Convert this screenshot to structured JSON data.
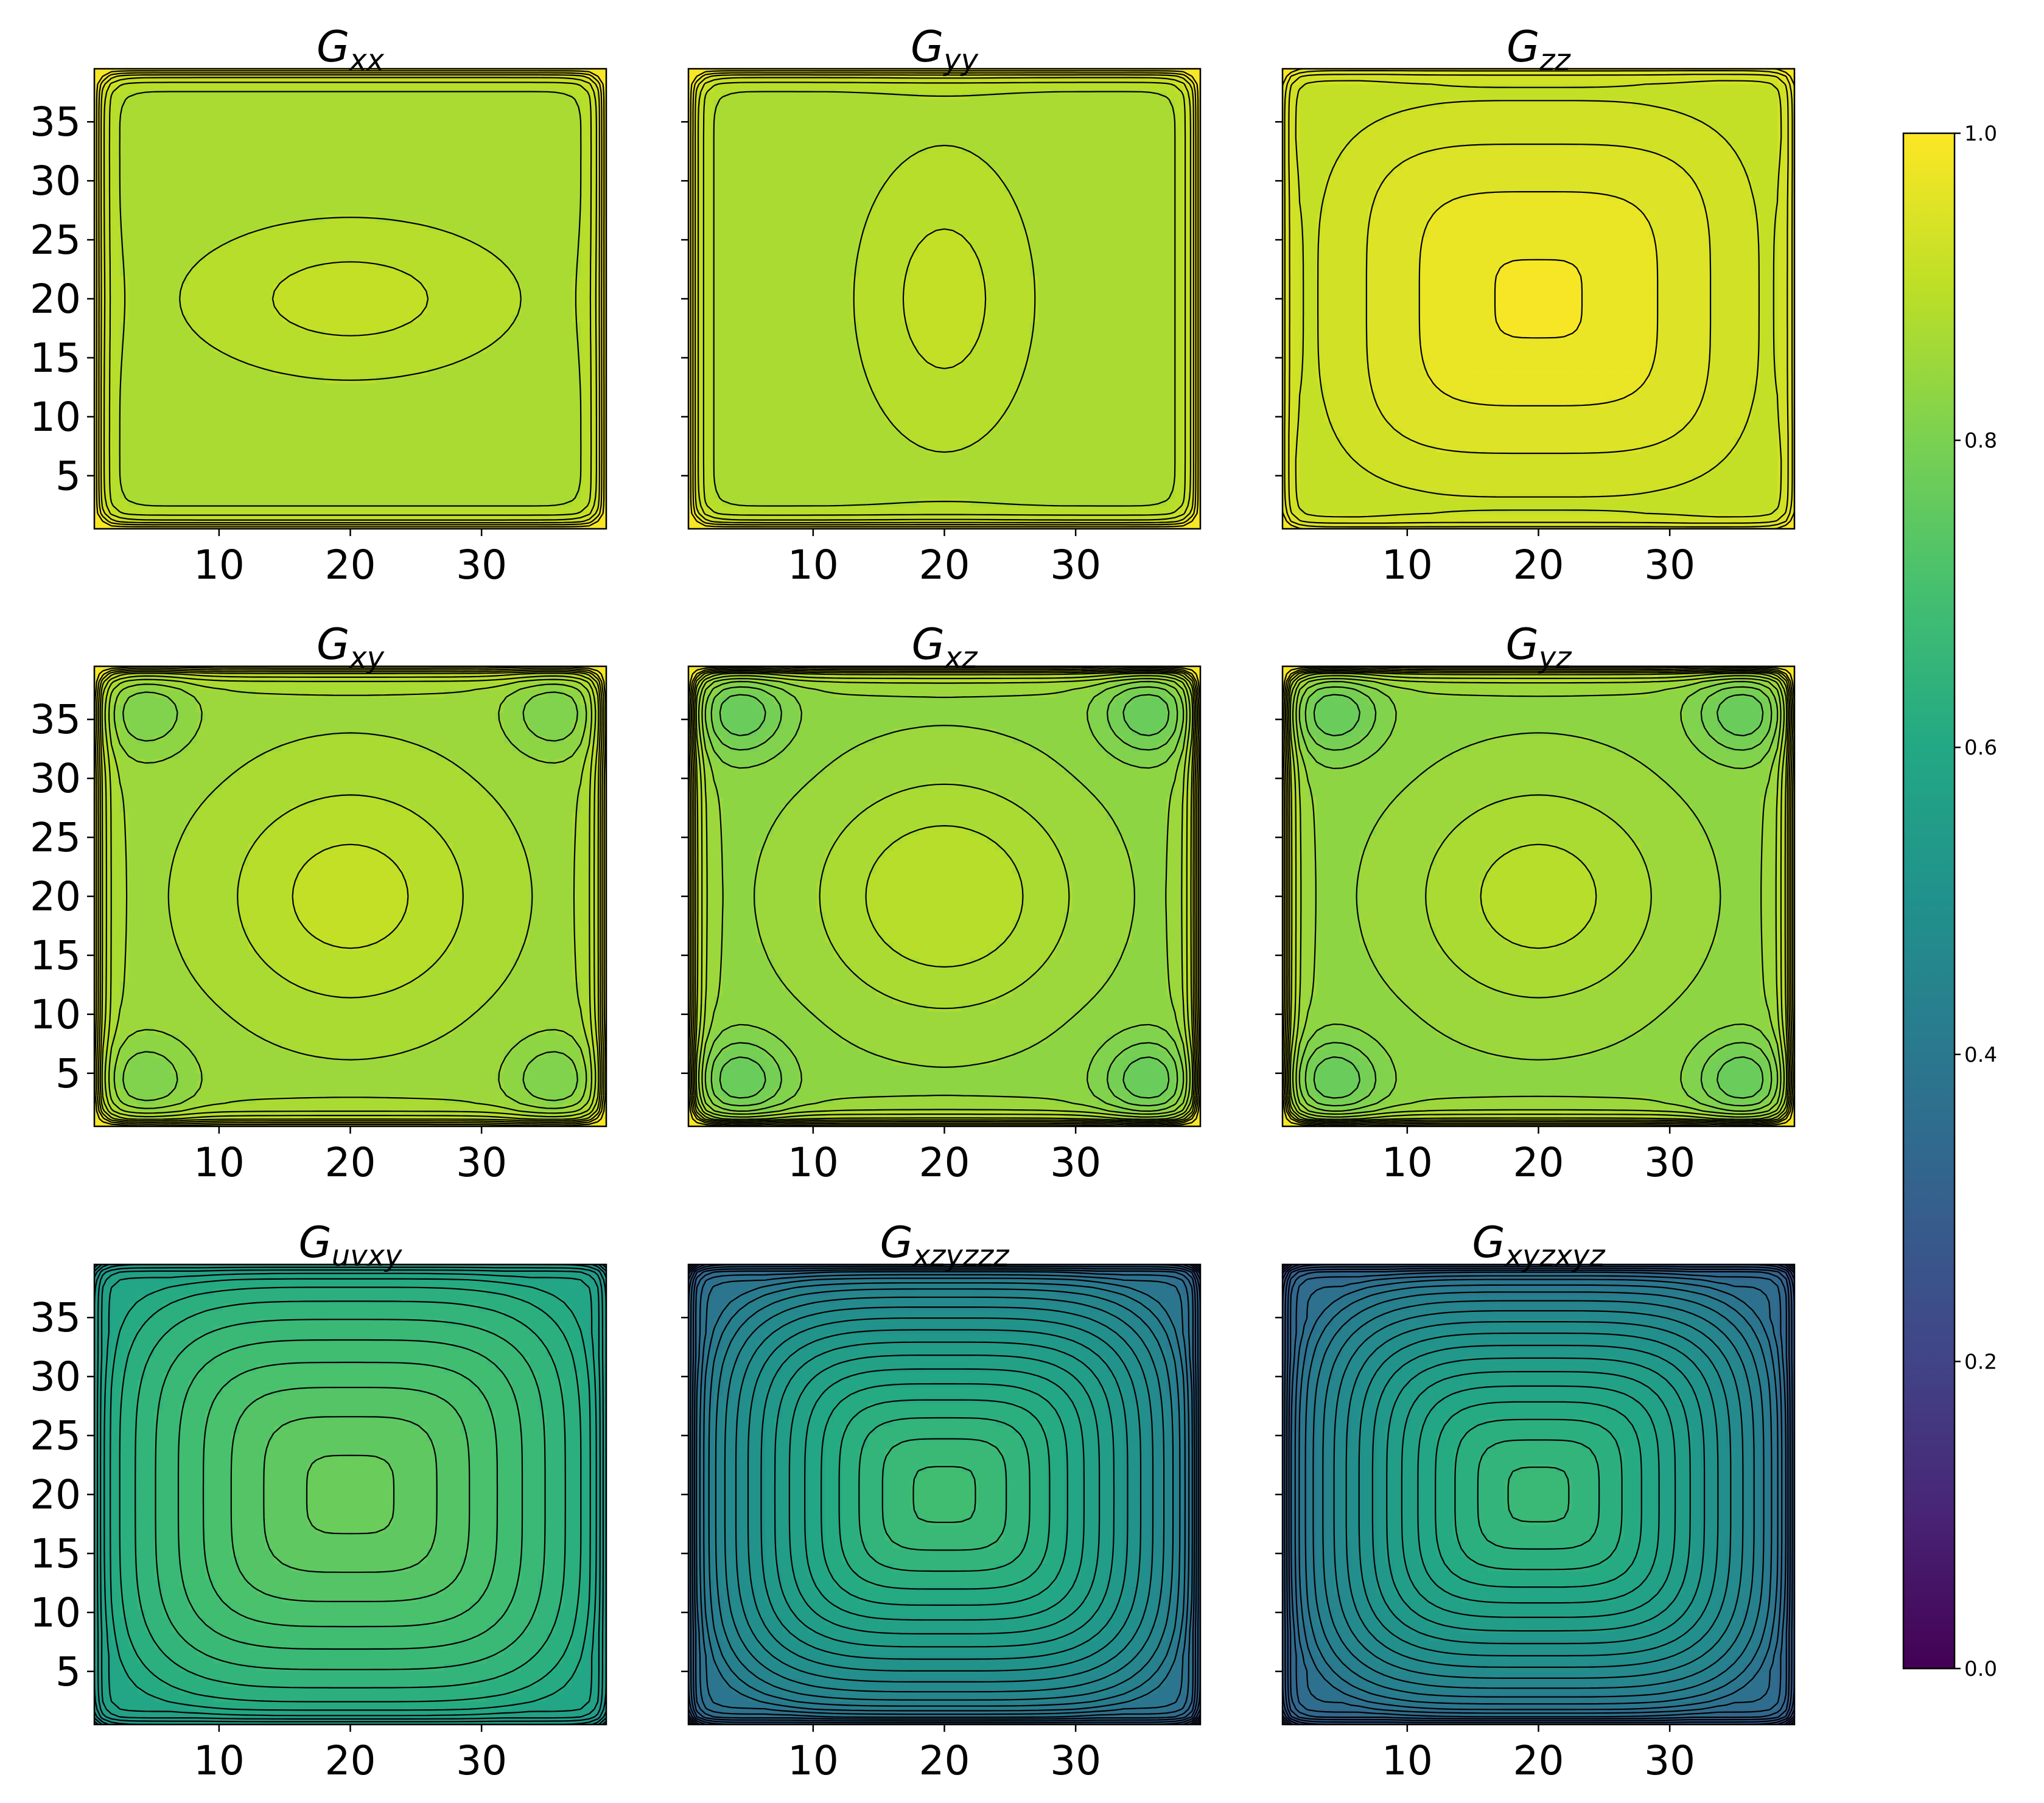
{
  "colormap": "viridis",
  "contour_line_color": "#000000",
  "chart_data": [
    {
      "type": "contour",
      "title": "G",
      "subscript": "xx",
      "x_ticks": [
        10,
        20,
        30
      ],
      "y_ticks": [
        5,
        10,
        15,
        20,
        25,
        30,
        35
      ],
      "xlim": [
        0.5,
        39.5
      ],
      "ylim": [
        0.5,
        39.5
      ],
      "center_value": 0.91,
      "field_value": 0.87,
      "edge_value": 1.0,
      "corner_value": 0.87,
      "pattern": "ellipse-horizontal"
    },
    {
      "type": "contour",
      "title": "G",
      "subscript": "yy",
      "x_ticks": [
        10,
        20,
        30
      ],
      "y_ticks": [
        5,
        10,
        15,
        20,
        25,
        30,
        35
      ],
      "xlim": [
        0.5,
        39.5
      ],
      "ylim": [
        0.5,
        39.5
      ],
      "center_value": 0.91,
      "field_value": 0.87,
      "edge_value": 1.0,
      "corner_value": 0.87,
      "pattern": "ellipse-vertical"
    },
    {
      "type": "contour",
      "title": "G",
      "subscript": "zz",
      "x_ticks": [
        10,
        20,
        30
      ],
      "y_ticks": [
        5,
        10,
        15,
        20,
        25,
        30,
        35
      ],
      "xlim": [
        0.5,
        39.5
      ],
      "ylim": [
        0.5,
        39.5
      ],
      "center_value": 0.985,
      "field_value": 0.93,
      "edge_value": 1.0,
      "corner_value": 0.9,
      "pattern": "rounded-square"
    },
    {
      "type": "contour",
      "title": "G",
      "subscript": "xy",
      "x_ticks": [
        10,
        20,
        30
      ],
      "y_ticks": [
        5,
        10,
        15,
        20,
        25,
        30,
        35
      ],
      "xlim": [
        0.5,
        39.5
      ],
      "ylim": [
        0.5,
        39.5
      ],
      "center_value": 0.91,
      "field_value": 0.85,
      "edge_value": 1.0,
      "corner_value": 0.8,
      "pattern": "saddle"
    },
    {
      "type": "contour",
      "title": "G",
      "subscript": "xz",
      "x_ticks": [
        10,
        20,
        30
      ],
      "y_ticks": [
        5,
        10,
        15,
        20,
        25,
        30,
        35
      ],
      "xlim": [
        0.5,
        39.5
      ],
      "ylim": [
        0.5,
        39.5
      ],
      "center_value": 0.9,
      "field_value": 0.83,
      "edge_value": 1.0,
      "corner_value": 0.76,
      "pattern": "saddle"
    },
    {
      "type": "contour",
      "title": "G",
      "subscript": "yz",
      "x_ticks": [
        10,
        20,
        30
      ],
      "y_ticks": [
        5,
        10,
        15,
        20,
        25,
        30,
        35
      ],
      "xlim": [
        0.5,
        39.5
      ],
      "ylim": [
        0.5,
        39.5
      ],
      "center_value": 0.89,
      "field_value": 0.83,
      "edge_value": 1.0,
      "corner_value": 0.76,
      "pattern": "saddle"
    },
    {
      "type": "contour",
      "title": "G",
      "subscript": "uvxy",
      "x_ticks": [
        10,
        20,
        30
      ],
      "y_ticks": [
        5,
        10,
        15,
        20,
        25,
        30,
        35
      ],
      "xlim": [
        0.5,
        39.5
      ],
      "ylim": [
        0.5,
        39.5
      ],
      "center_value": 0.77,
      "field_value": 0.7,
      "edge_value": 0.62,
      "corner_value": 0.6,
      "pattern": "rounded-square"
    },
    {
      "type": "contour",
      "title": "G",
      "subscript": "xzyzzz",
      "x_ticks": [
        10,
        20,
        30
      ],
      "y_ticks": [
        5,
        10,
        15,
        20,
        25,
        30,
        35
      ],
      "xlim": [
        0.5,
        39.5
      ],
      "ylim": [
        0.5,
        39.5
      ],
      "center_value": 0.69,
      "field_value": 0.55,
      "edge_value": 0.43,
      "corner_value": 0.4,
      "pattern": "rounded-square"
    },
    {
      "type": "contour",
      "title": "G",
      "subscript": "xyzxyz",
      "x_ticks": [
        10,
        20,
        30
      ],
      "y_ticks": [
        5,
        10,
        15,
        20,
        25,
        30,
        35
      ],
      "xlim": [
        0.5,
        39.5
      ],
      "ylim": [
        0.5,
        39.5
      ],
      "center_value": 0.67,
      "field_value": 0.5,
      "edge_value": 0.39,
      "corner_value": 0.37,
      "pattern": "rounded-square"
    }
  ],
  "colorbar": {
    "range": [
      0.0,
      1.0
    ],
    "ticks": [
      "0.0",
      "0.2",
      "0.4",
      "0.6",
      "0.8",
      "1.0"
    ]
  }
}
